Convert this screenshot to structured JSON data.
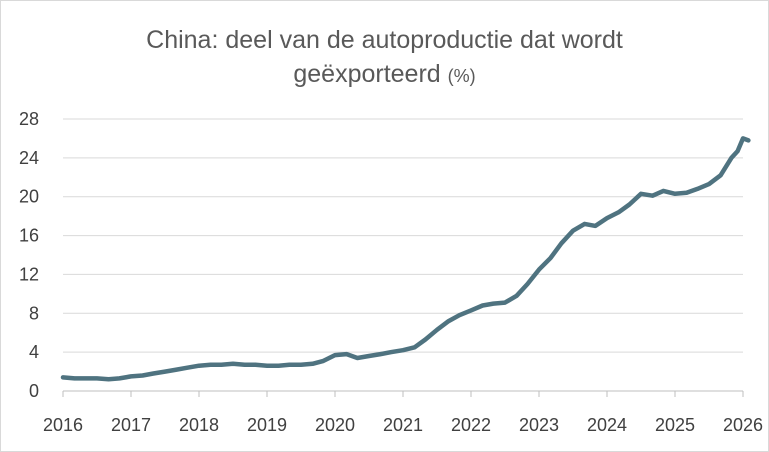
{
  "chart_data": {
    "type": "line",
    "title_line1": "China: deel van de autoproductie dat wordt",
    "title_line2": "geëxporteerd",
    "title_unit": "(%)",
    "xlabel": "",
    "ylabel": "",
    "xlim": [
      2016,
      2026
    ],
    "ylim": [
      0,
      28
    ],
    "xticks": [
      "2016",
      "2017",
      "2018",
      "2019",
      "2020",
      "2021",
      "2022",
      "2023",
      "2024",
      "2025",
      "2026"
    ],
    "yticks": [
      "0",
      "4",
      "8",
      "12",
      "16",
      "20",
      "24",
      "28"
    ],
    "grid": "horizontal",
    "legend": "none",
    "colors": {
      "line": "#4f7380",
      "grid": "#d9d9d9",
      "axis": "#bfbfbf",
      "text": "#404040",
      "title": "#595959"
    },
    "series": [
      {
        "x": [
          2016.0,
          2016.17,
          2016.33,
          2016.5,
          2016.67,
          2016.83,
          2017.0,
          2017.17,
          2017.33,
          2017.5,
          2017.67,
          2017.83,
          2018.0,
          2018.17,
          2018.33,
          2018.5,
          2018.67,
          2018.83,
          2019.0,
          2019.17,
          2019.33,
          2019.5,
          2019.67,
          2019.83,
          2020.0,
          2020.17,
          2020.33,
          2020.5,
          2020.67,
          2020.83,
          2021.0,
          2021.17,
          2021.33,
          2021.5,
          2021.67,
          2021.83,
          2022.0,
          2022.17,
          2022.33,
          2022.5,
          2022.67,
          2022.83,
          2023.0,
          2023.17,
          2023.33,
          2023.5,
          2023.67,
          2023.83,
          2024.0,
          2024.17,
          2024.33,
          2024.5,
          2024.67,
          2024.83,
          2025.0,
          2025.17,
          2025.33,
          2025.5,
          2025.67,
          2025.83,
          2025.92,
          2026.0,
          2026.08
        ],
        "values": [
          1.4,
          1.3,
          1.3,
          1.3,
          1.2,
          1.3,
          1.5,
          1.6,
          1.8,
          2.0,
          2.2,
          2.4,
          2.6,
          2.7,
          2.7,
          2.8,
          2.7,
          2.7,
          2.6,
          2.6,
          2.7,
          2.7,
          2.8,
          3.1,
          3.7,
          3.8,
          3.4,
          3.6,
          3.8,
          4.0,
          4.2,
          4.5,
          5.3,
          6.3,
          7.2,
          7.8,
          8.3,
          8.8,
          9.0,
          9.1,
          9.8,
          11.0,
          12.5,
          13.7,
          15.2,
          16.5,
          17.2,
          17.0,
          17.8,
          18.4,
          19.2,
          20.3,
          20.1,
          20.6,
          20.3,
          20.4,
          20.8,
          21.3,
          22.2,
          24.0,
          24.7,
          26.0,
          25.8
        ]
      }
    ]
  }
}
